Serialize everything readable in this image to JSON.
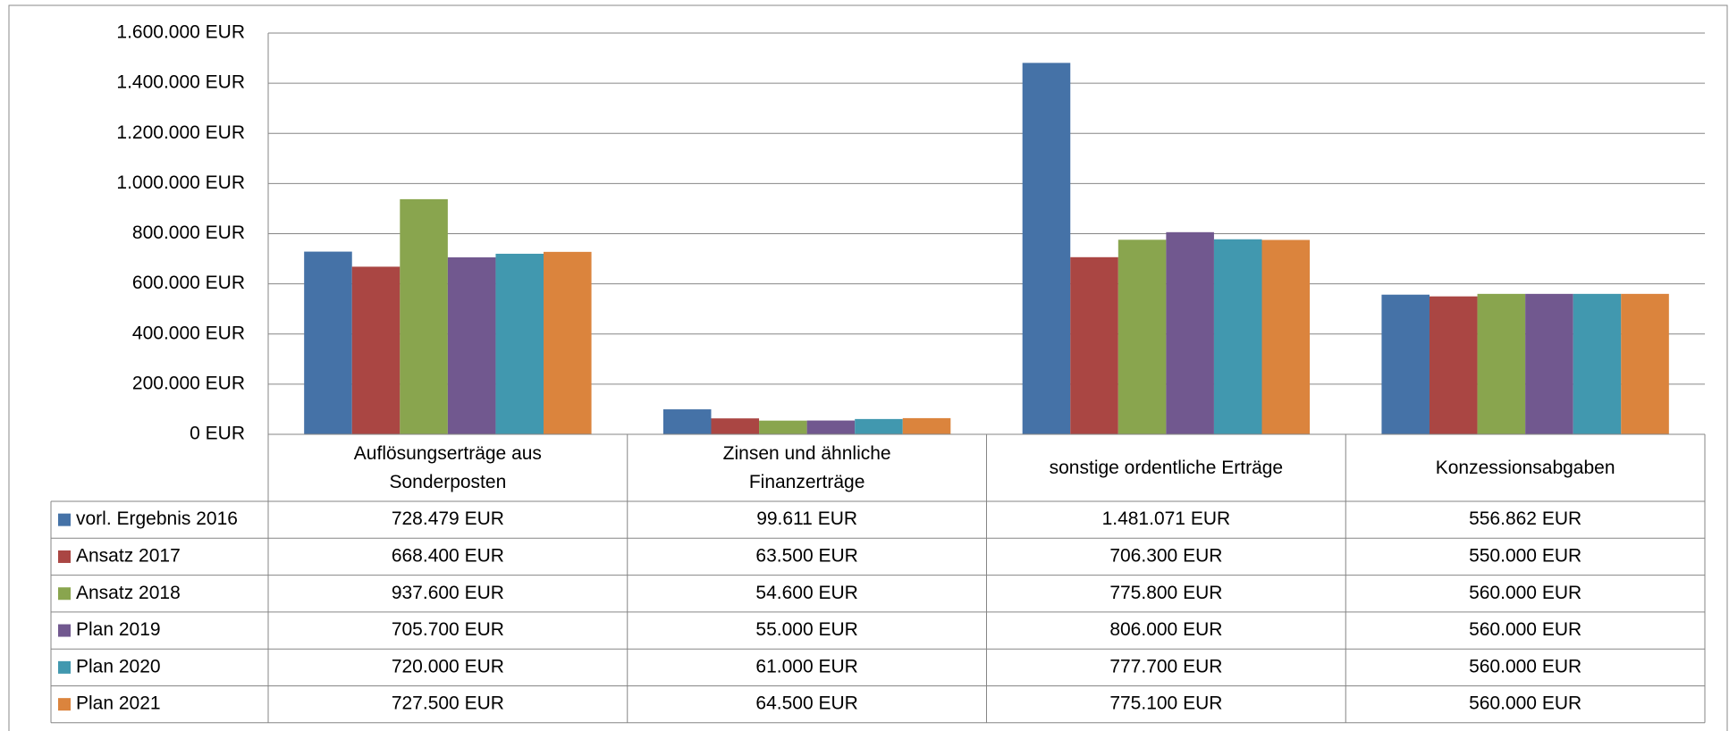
{
  "chart_data": {
    "type": "bar",
    "categories": [
      "Auflösungserträge aus Sonderposten",
      "Zinsen und ähnliche Finanzerträge",
      "sonstige ordentliche Erträge",
      "Konzessionsabgaben"
    ],
    "series": [
      {
        "name": "vorl. Ergebnis 2016",
        "color": "#4572a7",
        "values": [
          728479,
          99611,
          1481071,
          556862
        ],
        "value_labels": [
          "728.479 EUR",
          "99.611 EUR",
          "1.481.071 EUR",
          "556.862 EUR"
        ]
      },
      {
        "name": "Ansatz 2017",
        "color": "#aa4643",
        "values": [
          668400,
          63500,
          706300,
          550000
        ],
        "value_labels": [
          "668.400 EUR",
          "63.500 EUR",
          "706.300 EUR",
          "550.000 EUR"
        ]
      },
      {
        "name": "Ansatz 2018",
        "color": "#89a54e",
        "values": [
          937600,
          54600,
          775800,
          560000
        ],
        "value_labels": [
          "937.600 EUR",
          "54.600 EUR",
          "775.800 EUR",
          "560.000 EUR"
        ]
      },
      {
        "name": "Plan 2019",
        "color": "#71588f",
        "values": [
          705700,
          55000,
          806000,
          560000
        ],
        "value_labels": [
          "705.700 EUR",
          "55.000 EUR",
          "806.000 EUR",
          "560.000 EUR"
        ]
      },
      {
        "name": "Plan 2020",
        "color": "#4198af",
        "values": [
          720000,
          61000,
          777700,
          560000
        ],
        "value_labels": [
          "720.000 EUR",
          "61.000 EUR",
          "777.700 EUR",
          "560.000 EUR"
        ]
      },
      {
        "name": "Plan 2021",
        "color": "#db843d",
        "values": [
          727500,
          64500,
          775100,
          560000
        ],
        "value_labels": [
          "727.500 EUR",
          "64.500 EUR",
          "775.100 EUR",
          "560.000 EUR"
        ]
      }
    ],
    "ylim": [
      0,
      1600000
    ],
    "yticks": [
      {
        "value": 0,
        "label": "0 EUR"
      },
      {
        "value": 200000,
        "label": "200.000 EUR"
      },
      {
        "value": 400000,
        "label": "400.000 EUR"
      },
      {
        "value": 600000,
        "label": "600.000 EUR"
      },
      {
        "value": 800000,
        "label": "800.000 EUR"
      },
      {
        "value": 1000000,
        "label": "1.000.000 EUR"
      },
      {
        "value": 1200000,
        "label": "1.200.000 EUR"
      },
      {
        "value": 1400000,
        "label": "1.400.000 EUR"
      },
      {
        "value": 1600000,
        "label": "1.600.000 EUR"
      }
    ],
    "grid": true,
    "legend": "table"
  }
}
